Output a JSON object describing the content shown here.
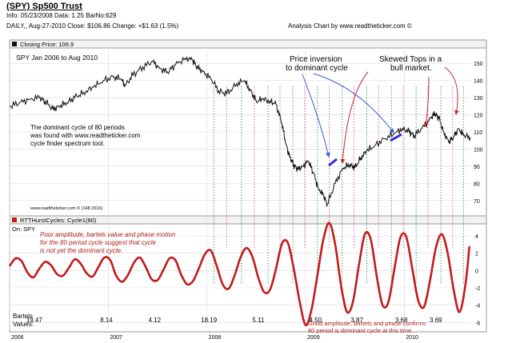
{
  "header": {
    "title": "(SPY) Sp500 Trust",
    "info": "Info: 05/23/2008 Data: 1.25 BarNo:629",
    "daily": "DAILY,, Aug-27-2010  Close: $106.86  Change: +$1.63  (1.5%)",
    "site": "Analysis Chart by www.readtheticker.com ©"
  },
  "colors": {
    "price_line": "#111111",
    "cycle_line": "#c21b1b",
    "green_dots": "#1e8a3c",
    "magenta_dots": "#d13a9a",
    "blue_annot": "#3a5bd6",
    "red_annot": "#c62828",
    "grid": "#d9d9d9"
  },
  "chart_data": [
    {
      "type": "line",
      "legend": "Closing Price: 106.9",
      "title": "SPY Jan 2006 to Aug 2010",
      "ylim": [
        62,
        158
      ],
      "y_ticks": [
        70,
        80,
        90,
        100,
        110,
        120,
        130,
        140,
        150
      ],
      "x_range": [
        2006.0,
        2010.67
      ],
      "watermark": "www.readtheticker.com ©  (148.1516)",
      "series": [
        {
          "name": "SPY close",
          "x": [
            2006.0,
            2006.1,
            2006.2,
            2006.3,
            2006.36,
            2006.44,
            2006.5,
            2006.58,
            2006.66,
            2006.75,
            2006.85,
            2006.95,
            2007.05,
            2007.13,
            2007.17,
            2007.25,
            2007.35,
            2007.45,
            2007.52,
            2007.6,
            2007.68,
            2007.78,
            2007.85,
            2007.9,
            2007.96,
            2008.04,
            2008.12,
            2008.2,
            2008.3,
            2008.38,
            2008.44,
            2008.5,
            2008.56,
            2008.64,
            2008.7,
            2008.76,
            2008.8,
            2008.84,
            2008.88,
            2008.92,
            2008.97,
            2009.03,
            2009.08,
            2009.13,
            2009.18,
            2009.22,
            2009.3,
            2009.38,
            2009.45,
            2009.5,
            2009.56,
            2009.62,
            2009.7,
            2009.8,
            2009.9,
            2009.98,
            2010.05,
            2010.1,
            2010.18,
            2010.27,
            2010.31,
            2010.35,
            2010.4,
            2010.45,
            2010.5,
            2010.55,
            2010.6,
            2010.67
          ],
          "y": [
            125,
            127,
            129,
            130,
            128,
            123,
            125,
            127,
            130,
            133,
            136,
            140,
            142,
            141,
            137,
            143,
            148,
            151,
            147,
            145,
            149,
            153,
            152,
            148,
            145,
            141,
            134,
            132,
            138,
            140,
            134,
            128,
            129,
            128,
            126,
            115,
            103,
            95,
            91,
            88,
            90,
            93,
            86,
            77,
            73,
            68,
            80,
            89,
            91,
            89,
            95,
            99,
            102,
            106,
            109,
            112,
            110,
            108,
            112,
            118,
            121,
            118,
            110,
            104,
            107,
            112,
            108,
            106.9
          ]
        }
      ]
    },
    {
      "type": "line",
      "legend": "RTTHurstCycles: Cycle1(80)",
      "on": "On: SPY",
      "ylim": [
        -6.8,
        5.2
      ],
      "y_ticks": [
        4,
        2,
        0,
        -2,
        -4,
        -6
      ],
      "x_range": [
        2006.0,
        2010.67
      ],
      "x_tick_labels": [
        "2006",
        "2007",
        "2008",
        "2009",
        "2010"
      ],
      "x_tick_values": [
        2006.0,
        2007.0,
        2008.0,
        2009.0,
        2010.0
      ],
      "series": [
        {
          "name": "Cycle1(80)",
          "x": [
            2006.0,
            2006.06,
            2006.12,
            2006.18,
            2006.24,
            2006.3,
            2006.36,
            2006.42,
            2006.48,
            2006.54,
            2006.6,
            2006.66,
            2006.72,
            2006.78,
            2006.84,
            2006.9,
            2006.96,
            2007.02,
            2007.08,
            2007.14,
            2007.2,
            2007.26,
            2007.32,
            2007.38,
            2007.44,
            2007.5,
            2007.56,
            2007.62,
            2007.68,
            2007.74,
            2007.8,
            2007.86,
            2007.92,
            2007.98,
            2008.04,
            2008.1,
            2008.16,
            2008.22,
            2008.28,
            2008.34,
            2008.4,
            2008.46,
            2008.52,
            2008.58,
            2008.64,
            2008.7,
            2008.76,
            2008.82,
            2008.88,
            2008.94,
            2009.0,
            2009.06,
            2009.12,
            2009.18,
            2009.24,
            2009.3,
            2009.36,
            2009.42,
            2009.48,
            2009.54,
            2009.6,
            2009.66,
            2009.72,
            2009.78,
            2009.84,
            2009.9,
            2009.96,
            2010.02,
            2010.08,
            2010.14,
            2010.2,
            2010.26,
            2010.32,
            2010.38,
            2010.44,
            2010.5,
            2010.56,
            2010.62,
            2010.66
          ],
          "y": [
            0.5,
            1.4,
            1.1,
            -0.2,
            -0.8,
            0.2,
            1.0,
            0.6,
            -0.4,
            -0.6,
            0.3,
            1.3,
            0.8,
            -0.3,
            -0.7,
            0.4,
            1.5,
            1.2,
            -0.6,
            -1.3,
            -0.5,
            0.9,
            1.5,
            0.4,
            -1.0,
            -1.1,
            0.1,
            1.4,
            1.2,
            -0.5,
            -1.6,
            -1.2,
            0.3,
            1.9,
            2.3,
            0.5,
            -1.6,
            -2.1,
            -0.6,
            1.5,
            2.6,
            1.6,
            -0.8,
            -2.5,
            -2.2,
            0.2,
            3.1,
            3.2,
            0.2,
            -3.6,
            -6.3,
            -4.5,
            -0.5,
            3.6,
            5.5,
            3.0,
            -1.8,
            -4.8,
            -3.6,
            0.6,
            4.2,
            3.6,
            -0.6,
            -4.0,
            -3.6,
            0.2,
            3.8,
            3.9,
            0.3,
            -3.4,
            -4.2,
            -1.2,
            2.6,
            4.2,
            2.0,
            -2.2,
            -4.8,
            -1.6,
            2.8
          ]
        }
      ]
    }
  ],
  "price_annotations": {
    "top_left_text": "SPY Jan 2006 to Aug 2010",
    "dominant_cycle_text": [
      "The dominant cycle of 80 periods",
      "was found with www.readtheticker.com",
      "cycle finder spectrum tool."
    ],
    "inversion_label": [
      "Price inversion",
      "to dominant cycle"
    ],
    "skewed_label": [
      "Skewed Tops in a",
      "bull market."
    ]
  },
  "cycle_annotations": {
    "poor_note": [
      "Poor amplitude, bartels value and phase motion",
      "for the 80 period cycle suggest that cycle",
      "is not yet the dominant cycle."
    ],
    "good_note": [
      "Good amplitude, bartels and phase confirms",
      "80 period is dominant cycle at this time."
    ],
    "bartels_label": [
      "Bartels",
      "Values:"
    ],
    "bartels_values": [
      "19.47",
      "8.14",
      "4.12",
      "18.19",
      "5.11",
      "4.50",
      "3.87",
      "3.68",
      "3.69"
    ],
    "bartels_x": [
      2006.25,
      2006.98,
      2007.47,
      2008.02,
      2008.52,
      2009.1,
      2009.52,
      2009.97,
      2010.32
    ]
  },
  "cycle_markers": {
    "green_x": [
      2008.07,
      2008.35,
      2008.62,
      2008.87,
      2009.12,
      2009.37,
      2009.62,
      2009.87,
      2010.12,
      2010.37,
      2010.6
    ],
    "magenta_x": [
      2008.2,
      2008.48,
      2008.74,
      2008.99,
      2009.24,
      2009.49,
      2009.74,
      2009.99,
      2010.24,
      2010.49
    ]
  }
}
